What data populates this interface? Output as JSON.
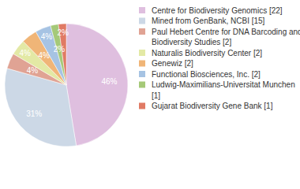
{
  "chart_data": {
    "type": "pie",
    "categories": [
      "Centre for Biodiversity Genomics [22]",
      "Mined from GenBank, NCBI [15]",
      "Paul Hebert Centre for DNA Barcoding and Biodiversity Studies [2]",
      "Naturalis Biodiversity Center [2]",
      "Genewiz [2]",
      "Functional Biosciences, Inc. [2]",
      "Ludwig-Maximilians-Universitat Munchen [1]",
      "Gujarat Biodiversity Gene Bank [1]"
    ],
    "values": [
      46,
      31,
      4,
      4,
      4,
      4,
      2,
      2
    ],
    "value_labels": [
      "46%",
      "31%",
      "4%",
      "4%",
      "4%",
      "4%",
      "2%",
      "2%"
    ],
    "colors": [
      "#dfbfdf",
      "#ccd8e6",
      "#e0a394",
      "#e3e9a5",
      "#f0b577",
      "#a6c3e3",
      "#a5c978",
      "#e07a64"
    ],
    "data_labels": true,
    "legend": "right"
  }
}
